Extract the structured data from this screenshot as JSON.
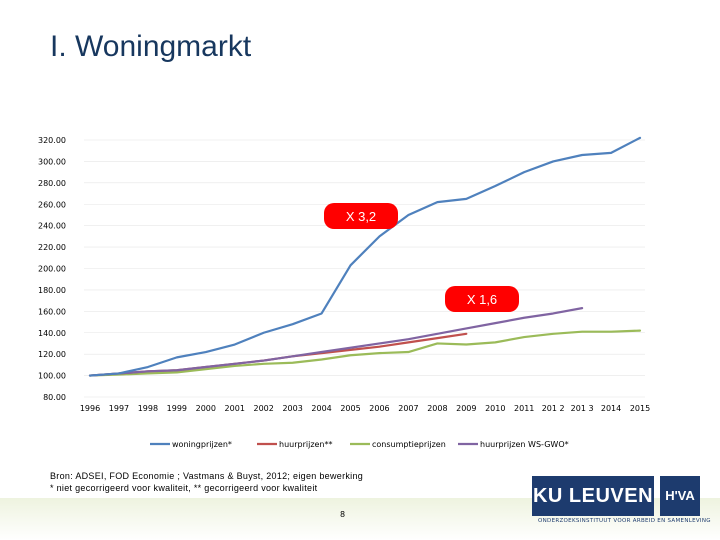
{
  "slide": {
    "title": "I. Woningmarkt",
    "source_line1": "Bron: ADSEI, FOD Economie ; Vastmans & Buyst, 2012; eigen bewerking",
    "source_line2": "* niet gecorrigeerd voor kwaliteit,  ** gecorrigeerd voor kwaliteit",
    "page_number": "8",
    "logo_ku": "KU LEUVEN",
    "logo_hva": "H'VA",
    "logo_tagline": "ONDERZOEKSINSTITUUT VOOR ARBEID EN SAMENLEVING"
  },
  "chart_data": {
    "type": "line",
    "title": "",
    "xlabel": "",
    "ylabel": "",
    "categories": [
      "1996",
      "1997",
      "1998",
      "1999",
      "2000",
      "2001",
      "2002",
      "2003",
      "2004",
      "2005",
      "2006",
      "2007",
      "2008",
      "2009",
      "2010",
      "2011",
      "2012",
      "2013",
      "2014",
      "2015"
    ],
    "x_tick_labels": [
      "1996",
      "1997",
      "1998",
      "1999",
      "2000",
      "2001",
      "2002",
      "2003",
      "2004",
      "2005",
      "2006",
      "2007",
      "2008",
      "2009",
      "2010",
      "2011",
      "201 2",
      "201 3",
      "2014",
      "2015"
    ],
    "ylim": [
      80,
      320
    ],
    "y_ticks": [
      "80.00",
      "100.00",
      "120.00",
      "140.00",
      "160.00",
      "180.00",
      "200.00",
      "220.00",
      "240.00",
      "260.00",
      "280.00",
      "300.00",
      "320.00"
    ],
    "y_tick_values": [
      80,
      100,
      120,
      140,
      160,
      180,
      200,
      220,
      240,
      260,
      280,
      300,
      320
    ],
    "legend_position": "bottom",
    "series": [
      {
        "name": "woningprijzen*",
        "color": "#4f81bd",
        "values": [
          100,
          102,
          108,
          117,
          122,
          129,
          140,
          148,
          158,
          203,
          230,
          250,
          262,
          265,
          277,
          290,
          300,
          306,
          308,
          322
        ]
      },
      {
        "name": "huurprijzen**",
        "color": "#c0504d",
        "values": [
          100,
          102,
          104,
          105,
          108,
          111,
          114,
          118,
          121,
          124,
          127,
          131,
          135,
          139,
          null,
          null,
          null,
          null,
          null,
          null
        ]
      },
      {
        "name": "consumptieprijzen",
        "color": "#9bbb59",
        "values": [
          100,
          101,
          102,
          103,
          106,
          109,
          111,
          112,
          115,
          119,
          121,
          122,
          130,
          129,
          131,
          136,
          139,
          141,
          141,
          142
        ]
      },
      {
        "name": "huurprijzen WS-GWO*",
        "color": "#8064a2",
        "values": [
          100,
          102,
          104,
          105,
          108,
          111,
          114,
          118,
          122,
          126,
          130,
          134,
          139,
          144,
          149,
          154,
          158,
          163,
          null,
          null
        ]
      }
    ],
    "annotations": [
      {
        "text": "X 3,2",
        "color": "#ff0000",
        "series": "woningprijzen*"
      },
      {
        "text": "X 1,6",
        "color": "#ff0000",
        "series": "huurprijzen WS-GWO*"
      }
    ]
  }
}
